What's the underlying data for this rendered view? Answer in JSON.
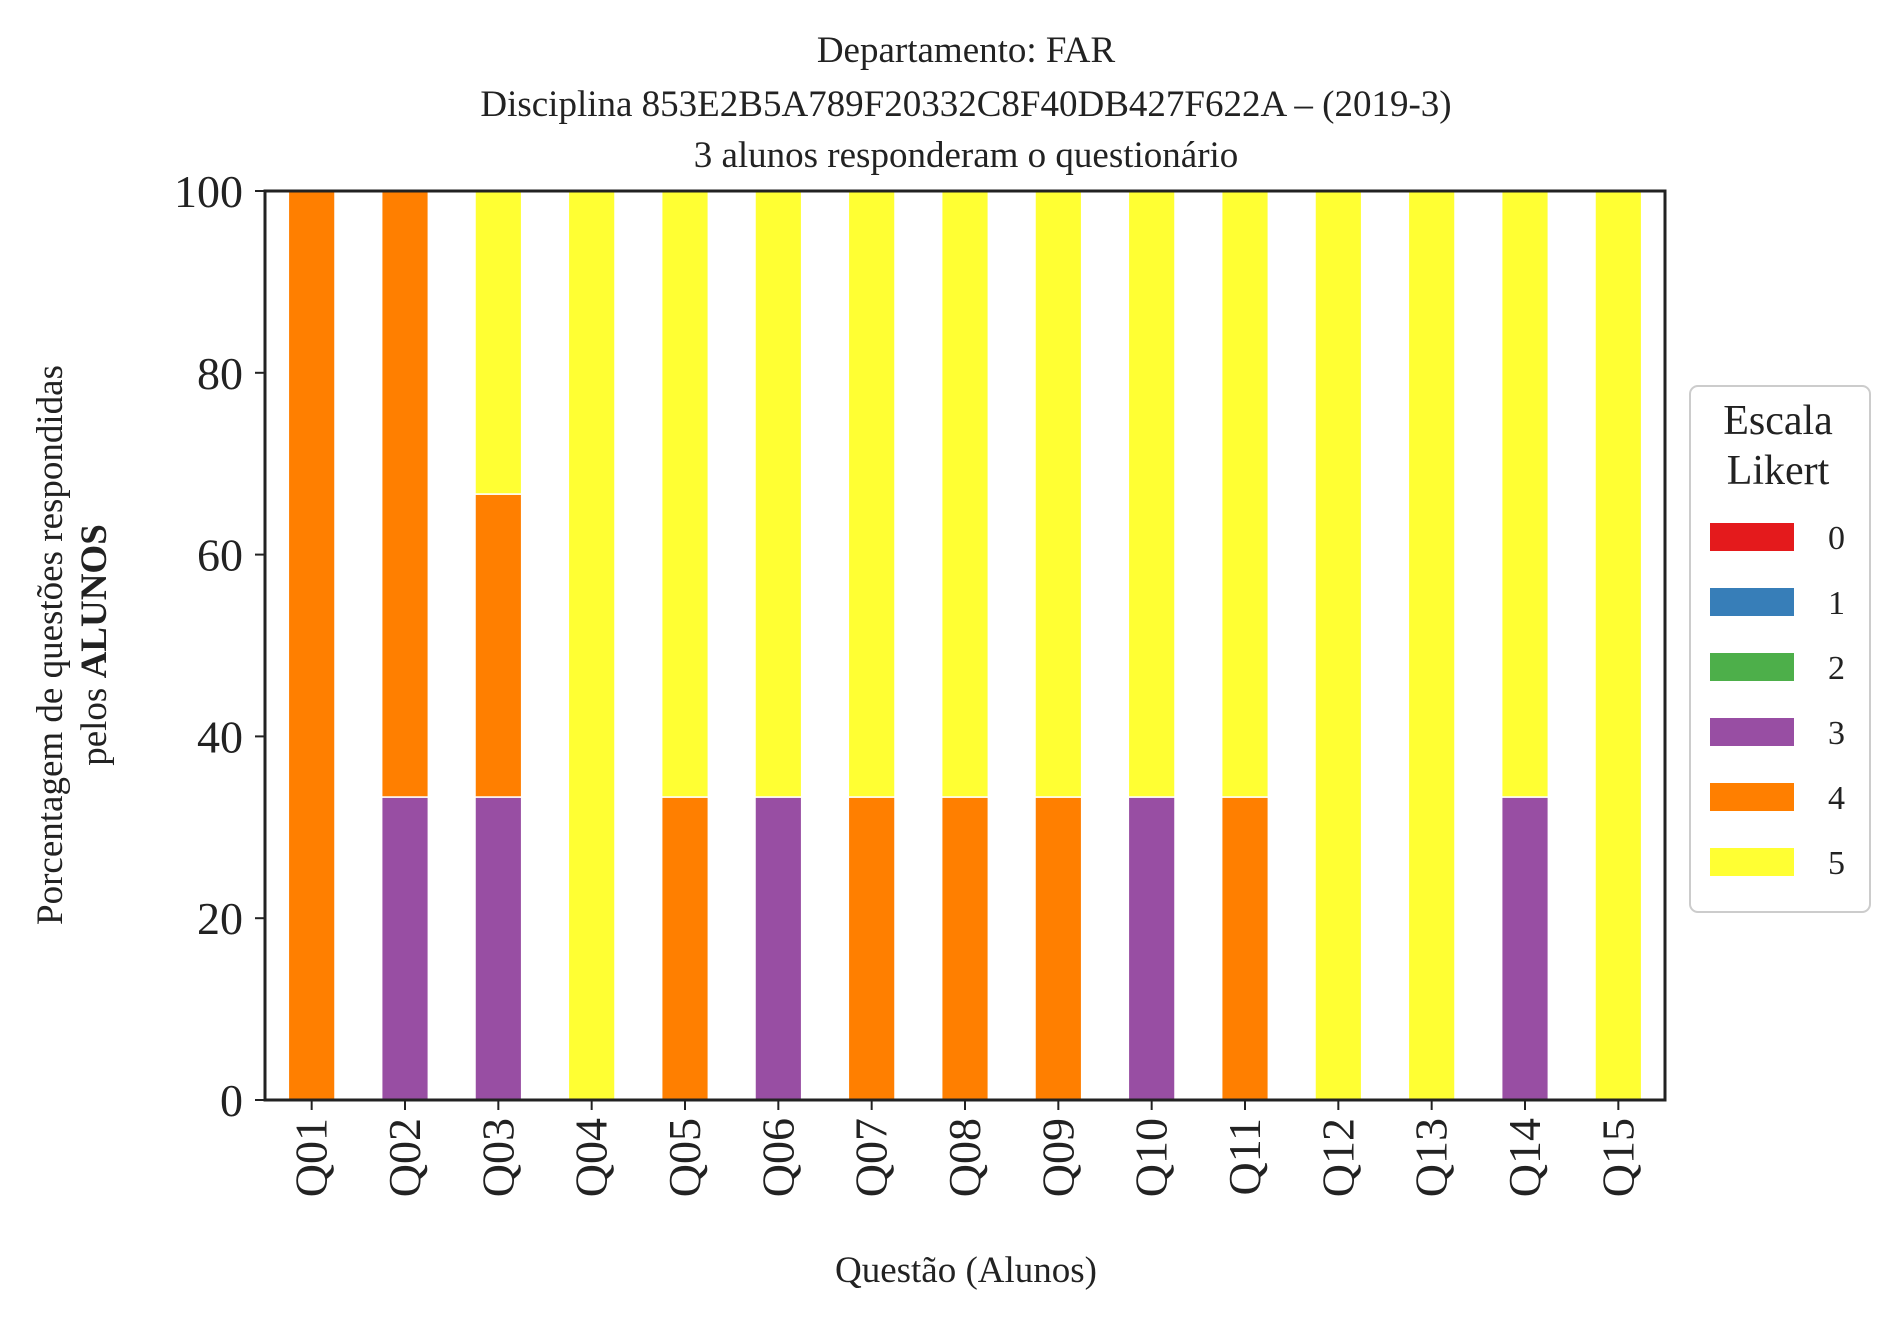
{
  "chart_data": {
    "type": "bar",
    "stacked": true,
    "title": [
      "Departamento: FAR",
      "Disciplina 853E2B5A789F20332C8F40DB427F622A – (2019-3)",
      "3 alunos responderam o questionário"
    ],
    "xlabel": "Questão (Alunos)",
    "ylabel_line1": "Porcentagem de questões respondidas",
    "ylabel_line2_prefix": "pelos ",
    "ylabel_line2_bold": "ALUNOS",
    "ylim": [
      0,
      100
    ],
    "yticks": [
      0,
      20,
      40,
      60,
      80,
      100
    ],
    "grid": false,
    "categories": [
      "Q01",
      "Q02",
      "Q03",
      "Q04",
      "Q05",
      "Q06",
      "Q07",
      "Q08",
      "Q09",
      "Q10",
      "Q11",
      "Q12",
      "Q13",
      "Q14",
      "Q15"
    ],
    "legend": {
      "title": [
        "Escala",
        "Likert"
      ],
      "placement": "right"
    },
    "series": [
      {
        "name": "0",
        "color": "#e41a1c",
        "values": [
          0,
          0,
          0,
          0,
          0,
          0,
          0,
          0,
          0,
          0,
          0,
          0,
          0,
          0,
          0
        ]
      },
      {
        "name": "1",
        "color": "#377eb8",
        "values": [
          0,
          0,
          0,
          0,
          0,
          0,
          0,
          0,
          0,
          0,
          0,
          0,
          0,
          0,
          0
        ]
      },
      {
        "name": "2",
        "color": "#4daf4a",
        "values": [
          0,
          0,
          0,
          0,
          0,
          0,
          0,
          0,
          0,
          0,
          0,
          0,
          0,
          0,
          0
        ]
      },
      {
        "name": "3",
        "color": "#984ea3",
        "values": [
          0,
          33.33,
          33.33,
          0,
          0,
          33.33,
          0,
          0,
          0,
          33.33,
          0,
          0,
          0,
          33.33,
          0
        ]
      },
      {
        "name": "4",
        "color": "#ff7f00",
        "values": [
          100,
          66.67,
          33.33,
          0,
          33.33,
          0,
          33.33,
          33.33,
          33.33,
          0,
          33.33,
          0,
          0,
          0,
          0
        ]
      },
      {
        "name": "5",
        "color": "#ffff33",
        "values": [
          0,
          0,
          33.33,
          100,
          66.67,
          66.67,
          66.67,
          66.67,
          66.67,
          66.67,
          66.67,
          100,
          100,
          66.67,
          100
        ]
      }
    ]
  }
}
